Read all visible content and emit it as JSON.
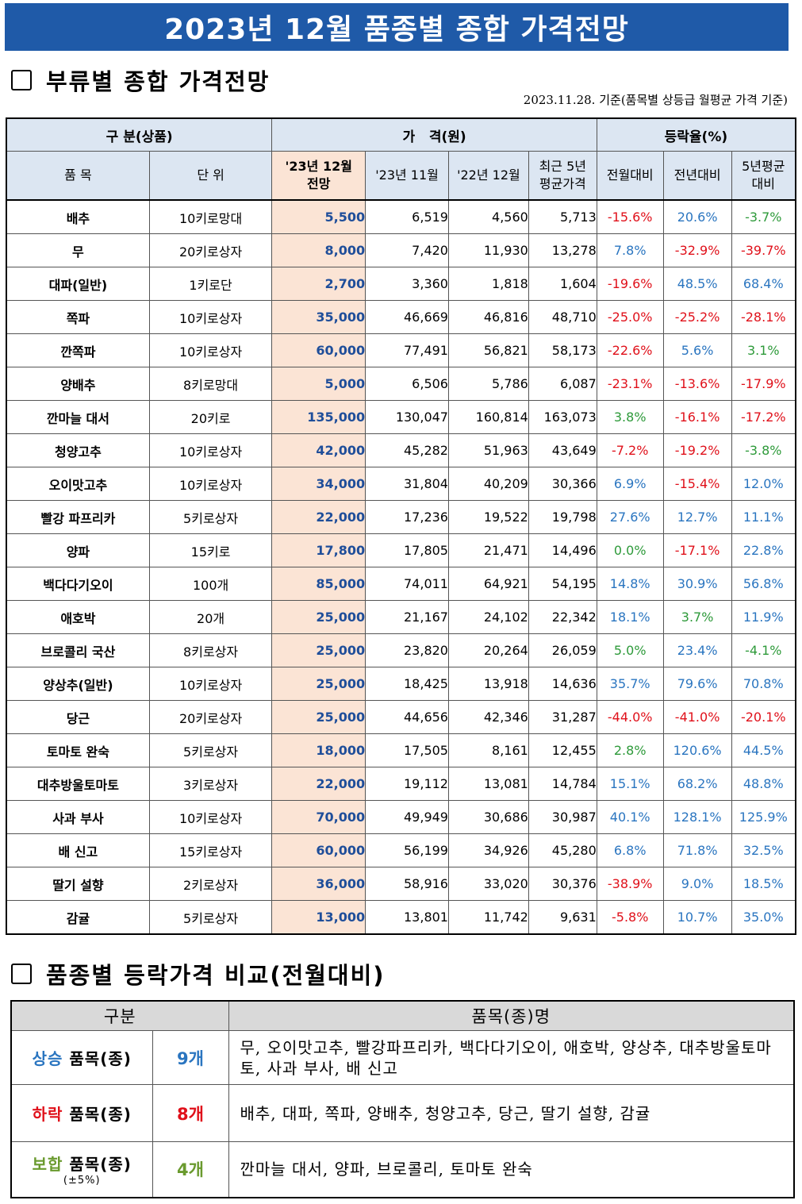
{
  "title": "2023년 12월 품종별 종합 가격전망",
  "section1": {
    "title": "부류별 종합 가격전망",
    "date_note": "2023.11.28. 기준(품목별 상등급 월평균 가격 기준)"
  },
  "table": {
    "group_headers": {
      "category": "구 분(상품)",
      "price": "가   격(원)",
      "change": "등락율(%)"
    },
    "col_headers": {
      "item": "품 목",
      "unit": "단 위",
      "forecast_1": "'23년 12월",
      "forecast_2": "전망",
      "nov23": "'23년 11월",
      "dec22": "'22년 12월",
      "avg5_1": "최근 5년",
      "avg5_2": "평균가격",
      "mom": "전월대비",
      "yoy": "전년대비",
      "vs5_1": "5년평균",
      "vs5_2": "대비"
    },
    "rows": [
      {
        "item": "배추",
        "unit": "10키로망대",
        "forecast": "5,500",
        "nov23": "6,519",
        "dec22": "4,560",
        "avg5": "5,713",
        "mom": "-15.6%",
        "yoy": "20.6%",
        "vs5": "-3.7%"
      },
      {
        "item": "무",
        "unit": "20키로상자",
        "forecast": "8,000",
        "nov23": "7,420",
        "dec22": "11,930",
        "avg5": "13,278",
        "mom": "7.8%",
        "yoy": "-32.9%",
        "vs5": "-39.7%"
      },
      {
        "item": "대파(일반)",
        "unit": "1키로단",
        "forecast": "2,700",
        "nov23": "3,360",
        "dec22": "1,818",
        "avg5": "1,604",
        "mom": "-19.6%",
        "yoy": "48.5%",
        "vs5": "68.4%"
      },
      {
        "item": "쪽파",
        "unit": "10키로상자",
        "forecast": "35,000",
        "nov23": "46,669",
        "dec22": "46,816",
        "avg5": "48,710",
        "mom": "-25.0%",
        "yoy": "-25.2%",
        "vs5": "-28.1%"
      },
      {
        "item": "깐쪽파",
        "unit": "10키로상자",
        "forecast": "60,000",
        "nov23": "77,491",
        "dec22": "56,821",
        "avg5": "58,173",
        "mom": "-22.6%",
        "yoy": "5.6%",
        "vs5": "3.1%"
      },
      {
        "item": "양배추",
        "unit": "8키로망대",
        "forecast": "5,000",
        "nov23": "6,506",
        "dec22": "5,786",
        "avg5": "6,087",
        "mom": "-23.1%",
        "yoy": "-13.6%",
        "vs5": "-17.9%"
      },
      {
        "item": "깐마늘 대서",
        "unit": "20키로",
        "forecast": "135,000",
        "nov23": "130,047",
        "dec22": "160,814",
        "avg5": "163,073",
        "mom": "3.8%",
        "yoy": "-16.1%",
        "vs5": "-17.2%"
      },
      {
        "item": "청양고추",
        "unit": "10키로상자",
        "forecast": "42,000",
        "nov23": "45,282",
        "dec22": "51,963",
        "avg5": "43,649",
        "mom": "-7.2%",
        "yoy": "-19.2%",
        "vs5": "-3.8%"
      },
      {
        "item": "오이맛고추",
        "unit": "10키로상자",
        "forecast": "34,000",
        "nov23": "31,804",
        "dec22": "40,209",
        "avg5": "30,366",
        "mom": "6.9%",
        "yoy": "-15.4%",
        "vs5": "12.0%"
      },
      {
        "item": "빨강 파프리카",
        "unit": "5키로상자",
        "forecast": "22,000",
        "nov23": "17,236",
        "dec22": "19,522",
        "avg5": "19,798",
        "mom": "27.6%",
        "yoy": "12.7%",
        "vs5": "11.1%"
      },
      {
        "item": "양파",
        "unit": "15키로",
        "forecast": "17,800",
        "nov23": "17,805",
        "dec22": "21,471",
        "avg5": "14,496",
        "mom": "0.0%",
        "yoy": "-17.1%",
        "vs5": "22.8%"
      },
      {
        "item": "백다다기오이",
        "unit": "100개",
        "forecast": "85,000",
        "nov23": "74,011",
        "dec22": "64,921",
        "avg5": "54,195",
        "mom": "14.8%",
        "yoy": "30.9%",
        "vs5": "56.8%"
      },
      {
        "item": "애호박",
        "unit": "20개",
        "forecast": "25,000",
        "nov23": "21,167",
        "dec22": "24,102",
        "avg5": "22,342",
        "mom": "18.1%",
        "yoy": "3.7%",
        "vs5": "11.9%"
      },
      {
        "item": "브로콜리 국산",
        "unit": "8키로상자",
        "forecast": "25,000",
        "nov23": "23,820",
        "dec22": "20,264",
        "avg5": "26,059",
        "mom": "5.0%",
        "yoy": "23.4%",
        "vs5": "-4.1%"
      },
      {
        "item": "양상추(일반)",
        "unit": "10키로상자",
        "forecast": "25,000",
        "nov23": "18,425",
        "dec22": "13,918",
        "avg5": "14,636",
        "mom": "35.7%",
        "yoy": "79.6%",
        "vs5": "70.8%"
      },
      {
        "item": "당근",
        "unit": "20키로상자",
        "forecast": "25,000",
        "nov23": "44,656",
        "dec22": "42,346",
        "avg5": "31,287",
        "mom": "-44.0%",
        "yoy": "-41.0%",
        "vs5": "-20.1%"
      },
      {
        "item": "토마토 완숙",
        "unit": "5키로상자",
        "forecast": "18,000",
        "nov23": "17,505",
        "dec22": "8,161",
        "avg5": "12,455",
        "mom": "2.8%",
        "yoy": "120.6%",
        "vs5": "44.5%"
      },
      {
        "item": "대추방울토마토",
        "unit": "3키로상자",
        "forecast": "22,000",
        "nov23": "19,112",
        "dec22": "13,081",
        "avg5": "14,784",
        "mom": "15.1%",
        "yoy": "68.2%",
        "vs5": "48.8%"
      },
      {
        "item": "사과 부사",
        "unit": "10키로상자",
        "forecast": "70,000",
        "nov23": "49,949",
        "dec22": "30,686",
        "avg5": "30,987",
        "mom": "40.1%",
        "yoy": "128.1%",
        "vs5": "125.9%"
      },
      {
        "item": "배 신고",
        "unit": "15키로상자",
        "forecast": "60,000",
        "nov23": "56,199",
        "dec22": "34,926",
        "avg5": "45,280",
        "mom": "6.8%",
        "yoy": "71.8%",
        "vs5": "32.5%"
      },
      {
        "item": "딸기 설향",
        "unit": "2키로상자",
        "forecast": "36,000",
        "nov23": "58,916",
        "dec22": "33,020",
        "avg5": "30,376",
        "mom": "-38.9%",
        "yoy": "9.0%",
        "vs5": "18.5%"
      },
      {
        "item": "감귤",
        "unit": "5키로상자",
        "forecast": "13,000",
        "nov23": "13,801",
        "dec22": "11,742",
        "avg5": "9,631",
        "mom": "-5.8%",
        "yoy": "10.7%",
        "vs5": "35.0%"
      }
    ]
  },
  "section2": {
    "title": "품종별 등락가격 비교(전월대비)"
  },
  "comparison": {
    "headers": {
      "category": "구분",
      "items": "품목(종)명"
    },
    "up": {
      "word": "상승",
      "label": "품목(종)",
      "count": "9개",
      "items": "무, 오이맛고추, 빨강파프리카, 백다다기오이, 애호박, 양상추, 대추방울토마토, 사과 부사, 배 신고"
    },
    "down": {
      "word": "하락",
      "label": "품목(종)",
      "count": "8개",
      "items": "배추, 대파, 쪽파, 양배추, 청양고추, 당근, 딸기 설향, 감귤"
    },
    "flat": {
      "word": "보합",
      "label": "품목(종)",
      "sub": "(±5%)",
      "count": "4개",
      "items": "깐마늘 대서, 양파, 브로콜리, 토마토 완숙"
    }
  },
  "colors": {
    "title_bg": "#1f5aa8",
    "header_bg": "#dce6f2",
    "forecast_bg": "#fbe4d5",
    "forecast_text": "#1f4e9a",
    "red": "#e0101a",
    "blue": "#2a75c0",
    "green": "#2e9a3a"
  }
}
